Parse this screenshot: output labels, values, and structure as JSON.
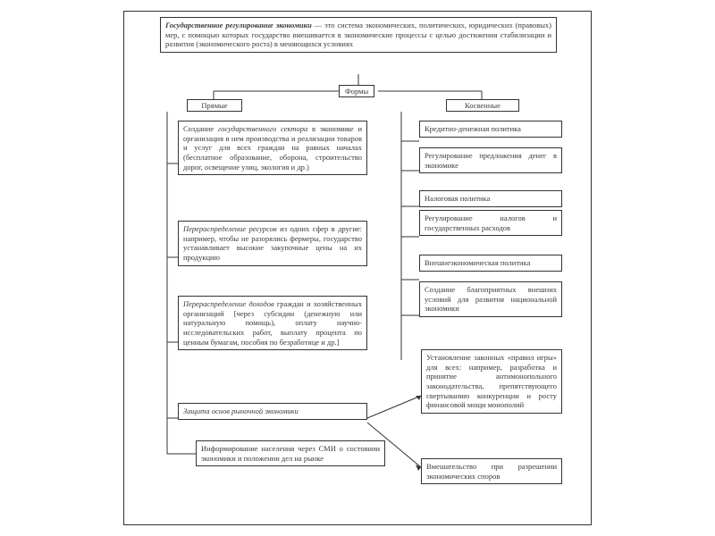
{
  "diagram": {
    "type": "flowchart",
    "colors": {
      "border": "#333333",
      "text": "#3a3a3a",
      "bg": "#ffffff"
    },
    "font": {
      "family": "serif",
      "size_pt": 8.5
    },
    "title_html": "<i><b>Государственное регулирование экономики</b></i> — это система экономических, политических, юридических (правовых) мер, с помощью которых государство вмешивается в экономические процессы с целью достижения стабилизации и развития (экономического роста) в меняющихся условиях",
    "forms_label": "Формы",
    "left_label": "Прямые",
    "right_label": "Косвенные",
    "left_boxes": [
      "Создание <i>государственного сектора</i> в экономике и организация в нем производства и реализации товаров и услуг для всех граждан на равных началах (бесплатное образование, оборона, строительство дорог, освещение улиц, экология и др.)",
      "<i>Перераспределение ресурсов</i> из одних сфер в другие: например, чтобы не разорялись фермеры, государство устанавливает высокие закупочные цены на их продукцию",
      "<i>Перераспределение доходов</i> граждан и хозяйственных организаций [через субсидии (денежную или натуральную помощь), оплату научно-исследовательских работ, выплату процента по ценным бумагам, пособия по безработице и др.]",
      "<i>Защита основ рыночной экономики</i>",
      "Информирование населения через СМИ о состоянии экономики и положении дел на рынке"
    ],
    "right_boxes": [
      "Кредитно-денежная политика",
      "Регулирование предложения денег в экономике",
      "Налоговая политика",
      "Регулирование налогов и государственных расходов",
      "Внешнеэкономическая политика",
      "Создание благоприятных внешних условий для развития национальной экономики",
      "Установление законных «правил игры» для всех: например, разработка и принятие антимонопольного законодательства, препятствующего свертыванию конкуренции и росту финансовой мощи монополий",
      "Вмешательство при разрешении экономических споров"
    ]
  }
}
